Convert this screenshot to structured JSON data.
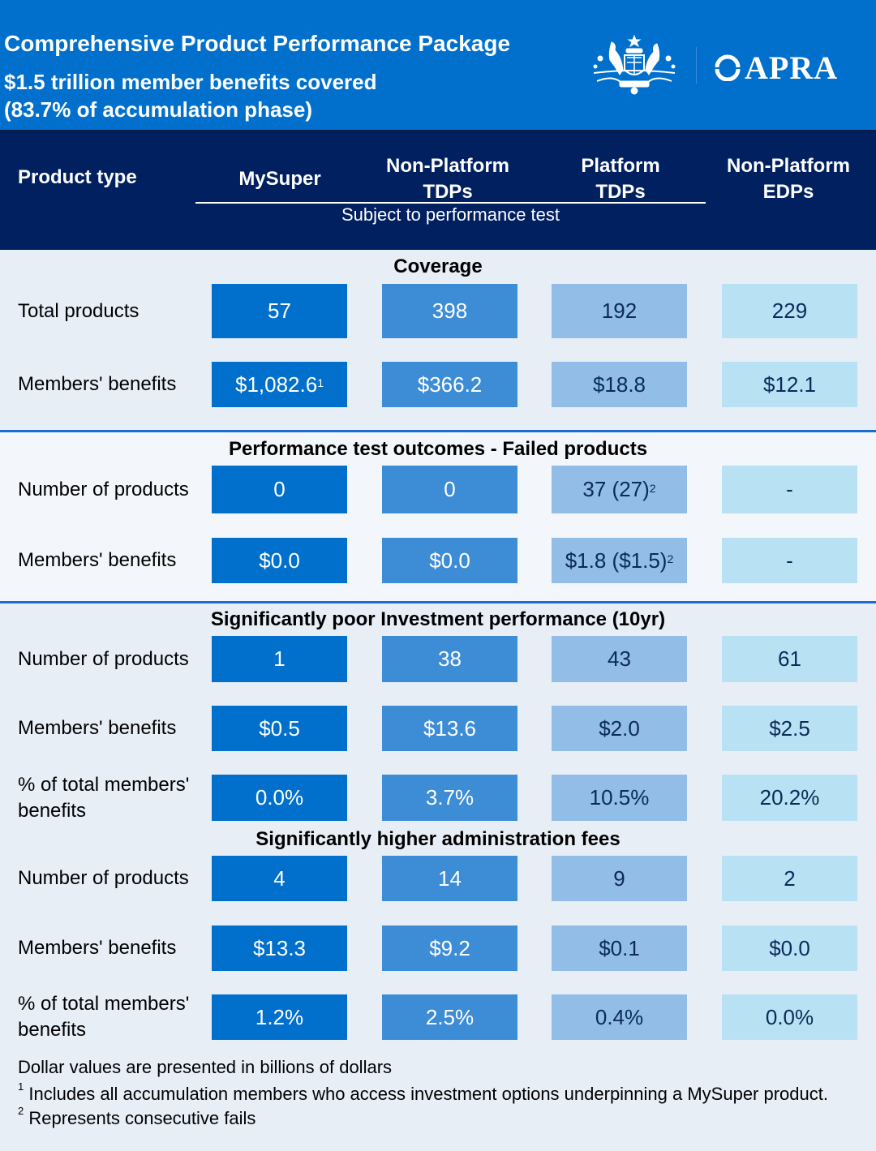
{
  "header": {
    "title": "Comprehensive Product Performance Package",
    "subtitle_line1": "$1.5 trillion member benefits covered",
    "subtitle_line2": "(83.7% of accumulation phase)",
    "logo_crest": "Commonwealth Coat of Arms (AUSTRALIA)",
    "logo_text": "APRA",
    "colors": {
      "brand_blue": "#0070cc",
      "navy": "#002060"
    }
  },
  "table_header": {
    "product_type": "Product type",
    "columns": [
      {
        "line1": "MySuper",
        "line2": ""
      },
      {
        "line1": "Non-Platform",
        "line2": "TDPs"
      },
      {
        "line1": "Platform",
        "line2": "TDPs"
      },
      {
        "line1": "Non-Platform",
        "line2": "EDPs"
      }
    ],
    "subject_note": "Subject to performance test"
  },
  "column_colors": [
    "#0070cc",
    "#3d8cd6",
    "#91bde6",
    "#b8e2f3"
  ],
  "sections": [
    {
      "title": "Coverage",
      "rows": [
        {
          "label": "Total products",
          "values": [
            {
              "v": "57"
            },
            {
              "v": "398"
            },
            {
              "v": "192"
            },
            {
              "v": "229"
            }
          ]
        },
        {
          "label": "Members' benefits",
          "values": [
            {
              "v": "$1,082.6",
              "sup": "1"
            },
            {
              "v": "$366.2"
            },
            {
              "v": "$18.8"
            },
            {
              "v": "$12.1"
            }
          ]
        }
      ]
    },
    {
      "title": "Performance test outcomes - Failed products",
      "rows": [
        {
          "label": "Number of products",
          "values": [
            {
              "v": "0"
            },
            {
              "v": "0"
            },
            {
              "v": "37 (27)",
              "sup": "2"
            },
            {
              "v": "-"
            }
          ]
        },
        {
          "label": "Members' benefits",
          "values": [
            {
              "v": "$0.0"
            },
            {
              "v": "$0.0"
            },
            {
              "v": "$1.8 ($1.5)",
              "sup": "2"
            },
            {
              "v": "-"
            }
          ]
        }
      ]
    },
    {
      "title": "Significantly poor Investment performance (10yr)",
      "rows": [
        {
          "label": "Number of products",
          "values": [
            {
              "v": "1"
            },
            {
              "v": "38"
            },
            {
              "v": "43"
            },
            {
              "v": "61"
            }
          ]
        },
        {
          "label": "Members' benefits",
          "values": [
            {
              "v": "$0.5"
            },
            {
              "v": "$13.6"
            },
            {
              "v": "$2.0"
            },
            {
              "v": "$2.5"
            }
          ]
        },
        {
          "label": "% of total members' benefits",
          "values": [
            {
              "v": "0.0%"
            },
            {
              "v": "3.7%"
            },
            {
              "v": "10.5%"
            },
            {
              "v": "20.2%"
            }
          ]
        }
      ]
    },
    {
      "title": "Significantly higher administration fees",
      "rows": [
        {
          "label": "Number of products",
          "values": [
            {
              "v": "4"
            },
            {
              "v": "14"
            },
            {
              "v": "9"
            },
            {
              "v": "2"
            }
          ]
        },
        {
          "label": "Members' benefits",
          "values": [
            {
              "v": "$13.3"
            },
            {
              "v": "$9.2"
            },
            {
              "v": "$0.1"
            },
            {
              "v": "$0.0"
            }
          ]
        },
        {
          "label": "% of total members' benefits",
          "values": [
            {
              "v": "1.2%"
            },
            {
              "v": "2.5%"
            },
            {
              "v": "0.4%"
            },
            {
              "v": "0.0%"
            }
          ]
        }
      ]
    }
  ],
  "footnotes": {
    "units": "Dollar values are presented in billions of dollars",
    "notes": [
      {
        "mark": "1",
        "text": "Includes all accumulation members who access investment options underpinning a MySuper product."
      },
      {
        "mark": "2",
        "text": "Represents consecutive fails"
      }
    ]
  }
}
